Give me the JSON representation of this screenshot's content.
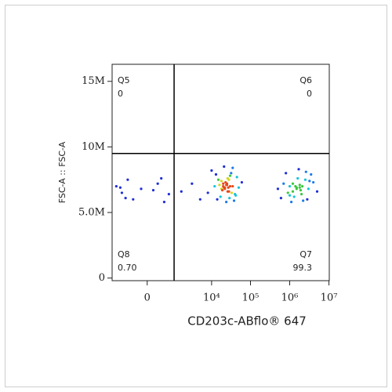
{
  "chart_data": {
    "type": "scatter",
    "x_label": "CD203c-ABflo® 647",
    "y_label": "FSC-A :: FSC-A",
    "xscale": "biexponential",
    "xlim": [
      -1600,
      10200000
    ],
    "xticks": [
      0,
      {
        "value": 10000,
        "label": "10⁴"
      },
      {
        "value": 100000,
        "label": "10⁵"
      },
      {
        "value": 1000000,
        "label": "10⁶"
      },
      {
        "value": 10000000,
        "label": "10⁷"
      }
    ],
    "ylim": [
      -0.2,
      16.3
    ],
    "yticks": [
      0,
      {
        "value": 5,
        "label": "5.0M"
      },
      {
        "value": 10,
        "label": "10M"
      },
      {
        "value": 15,
        "label": "15M"
      }
    ],
    "gate": {
      "x": 900,
      "y": 9.5
    },
    "quadrants": [
      {
        "name": "Q5",
        "value": 0,
        "corner": "top-left"
      },
      {
        "name": "Q6",
        "value": 0,
        "corner": "top-right"
      },
      {
        "name": "Q7",
        "value": 99.3,
        "corner": "bottom-right"
      },
      {
        "name": "Q8",
        "value": 0.7,
        "value_label": "0.70",
        "corner": "bottom-left"
      }
    ],
    "series": [
      {
        "x": [
          8000,
          12000,
          15000,
          18000,
          20000,
          22000,
          25000,
          28000,
          30000,
          35000,
          40000,
          50000,
          60000,
          10000,
          14000,
          17000,
          21000,
          24000,
          26000,
          32000,
          38000,
          45000,
          16000,
          19000,
          23000,
          27000,
          29000,
          33000,
          20000,
          25000,
          22000,
          18000,
          30000,
          26000,
          24000,
          21000,
          28000,
          35000,
          13000,
          42000,
          500000,
          700000,
          900000,
          1000000,
          1200000,
          1500000,
          1800000,
          2000000,
          2500000,
          3000000,
          4000000,
          5000000,
          800000,
          1100000,
          1300000,
          1600000,
          1700000,
          2200000,
          2800000,
          3500000,
          600000,
          1400000,
          1900000,
          1500000,
          1200000,
          2100000,
          1000000,
          2600000,
          3200000,
          1800000,
          -1200,
          -800,
          -500,
          -300,
          -100,
          200,
          400,
          600,
          -900,
          300,
          -600,
          100,
          1500,
          3000,
          5000
        ],
        "values": [
          6.5,
          7.0,
          7.5,
          6.8,
          7.2,
          6.9,
          7.1,
          6.6,
          7.8,
          7.0,
          6.4,
          6.9,
          7.3,
          8.2,
          6.0,
          6.2,
          8.5,
          5.8,
          7.6,
          8.0,
          5.9,
          7.7,
          7.1,
          6.7,
          7.3,
          6.9,
          6.1,
          6.5,
          7.0,
          7.2,
          6.8,
          7.4,
          7.0,
          6.6,
          7.1,
          6.9,
          7.5,
          8.4,
          7.9,
          6.3,
          6.8,
          7.2,
          6.5,
          7.0,
          6.6,
          6.9,
          7.1,
          6.4,
          7.5,
          6.8,
          7.3,
          6.6,
          8.0,
          5.8,
          6.2,
          7.6,
          8.3,
          5.9,
          6.0,
          7.9,
          6.1,
          7.0,
          6.7,
          6.8,
          7.2,
          7.0,
          6.3,
          8.1,
          7.4,
          6.9,
          7.0,
          6.5,
          7.5,
          6.0,
          6.8,
          7.2,
          5.8,
          6.4,
          6.9,
          7.6,
          6.1,
          6.7,
          6.6,
          7.2,
          6.0
        ]
      }
    ]
  }
}
